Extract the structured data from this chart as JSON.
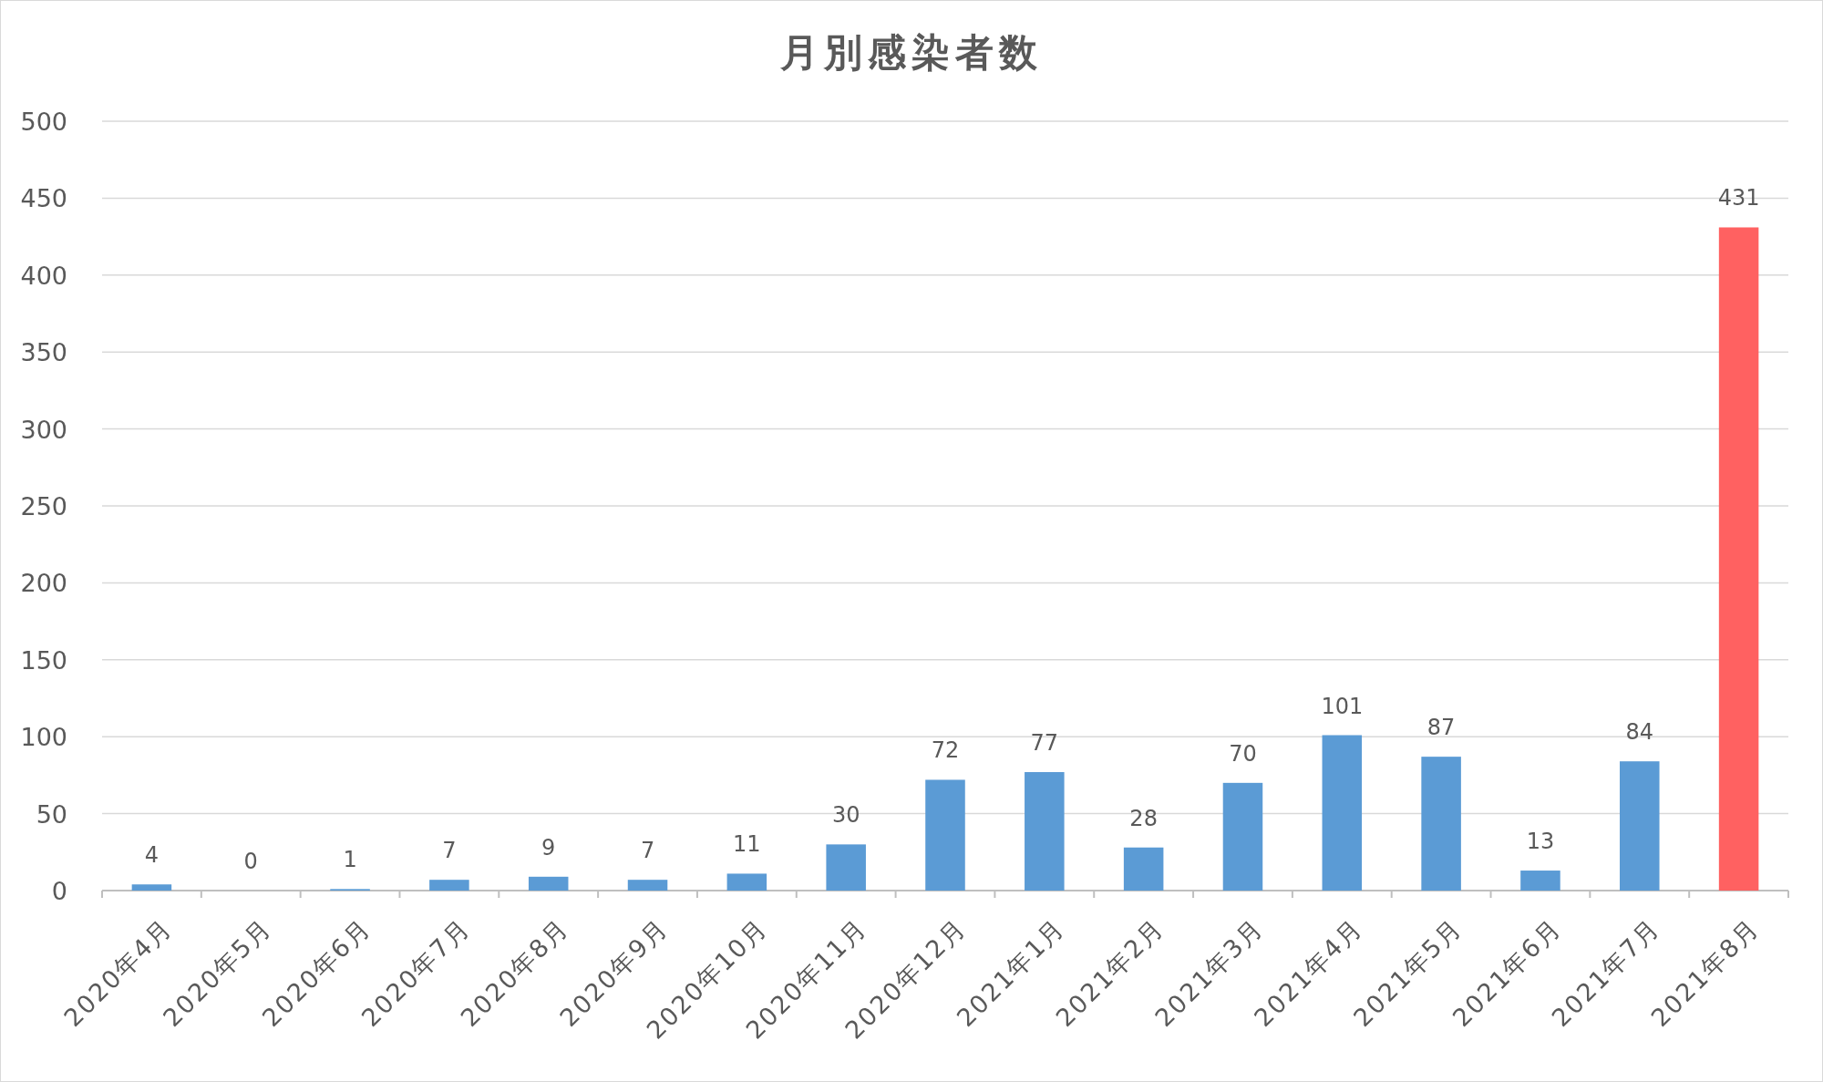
{
  "chart_data": {
    "type": "bar",
    "title": "月別感染者数",
    "categories": [
      "2020年4月",
      "2020年5月",
      "2020年6月",
      "2020年7月",
      "2020年8月",
      "2020年9月",
      "2020年10月",
      "2020年11月",
      "2020年12月",
      "2021年1月",
      "2021年2月",
      "2021年3月",
      "2021年4月",
      "2021年5月",
      "2021年6月",
      "2021年7月",
      "2021年8月"
    ],
    "values": [
      4,
      0,
      1,
      7,
      9,
      7,
      11,
      30,
      72,
      77,
      28,
      70,
      101,
      87,
      13,
      84,
      431
    ],
    "colors": [
      "#5b9bd5",
      "#5b9bd5",
      "#5b9bd5",
      "#5b9bd5",
      "#5b9bd5",
      "#5b9bd5",
      "#5b9bd5",
      "#5b9bd5",
      "#5b9bd5",
      "#5b9bd5",
      "#5b9bd5",
      "#5b9bd5",
      "#5b9bd5",
      "#5b9bd5",
      "#5b9bd5",
      "#5b9bd5",
      "#ff6161"
    ],
    "ylim": [
      0,
      500
    ],
    "yticks": [
      0,
      50,
      100,
      150,
      200,
      250,
      300,
      350,
      400,
      450,
      500
    ],
    "grid": "y",
    "data_labels": true
  }
}
